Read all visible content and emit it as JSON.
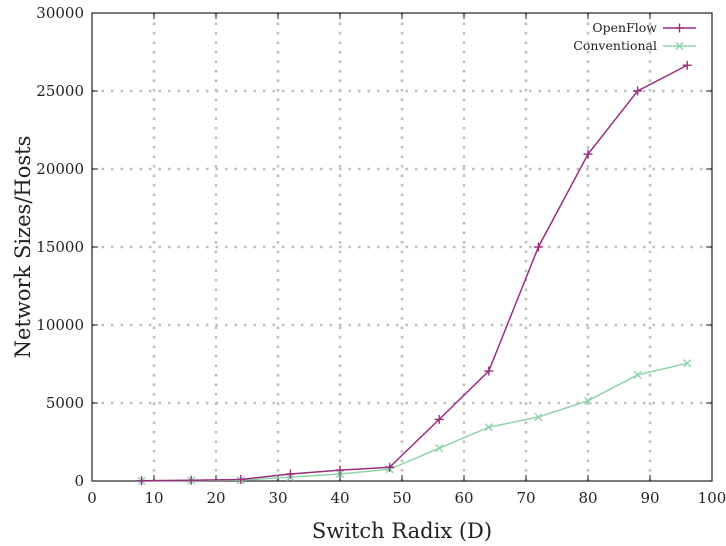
{
  "chart_data": {
    "type": "line",
    "xlabel": "Switch Radix (D)",
    "ylabel": "Network Sizes/Hosts",
    "xlim": [
      0,
      100
    ],
    "ylim": [
      0,
      30000
    ],
    "x_ticks": [
      0,
      10,
      20,
      30,
      40,
      50,
      60,
      70,
      80,
      90,
      100
    ],
    "y_ticks": [
      0,
      5000,
      10000,
      15000,
      20000,
      25000,
      30000
    ],
    "grid": true,
    "legend_position": "top-right",
    "series": [
      {
        "name": "OpenFlow",
        "color": "#9b2d7f",
        "marker": "plus",
        "x": [
          8,
          16,
          24,
          32,
          40,
          48,
          56,
          64,
          72,
          80,
          88,
          96
        ],
        "y": [
          20,
          50,
          100,
          450,
          700,
          880,
          3950,
          7050,
          15000,
          20950,
          25000,
          26650
        ]
      },
      {
        "name": "Conventional",
        "color": "#8fd3a8",
        "marker": "x",
        "x": [
          8,
          16,
          24,
          32,
          40,
          48,
          56,
          64,
          72,
          80,
          88,
          96
        ],
        "y": [
          10,
          30,
          50,
          250,
          450,
          750,
          2100,
          3450,
          4100,
          5150,
          6800,
          7550
        ]
      }
    ]
  }
}
